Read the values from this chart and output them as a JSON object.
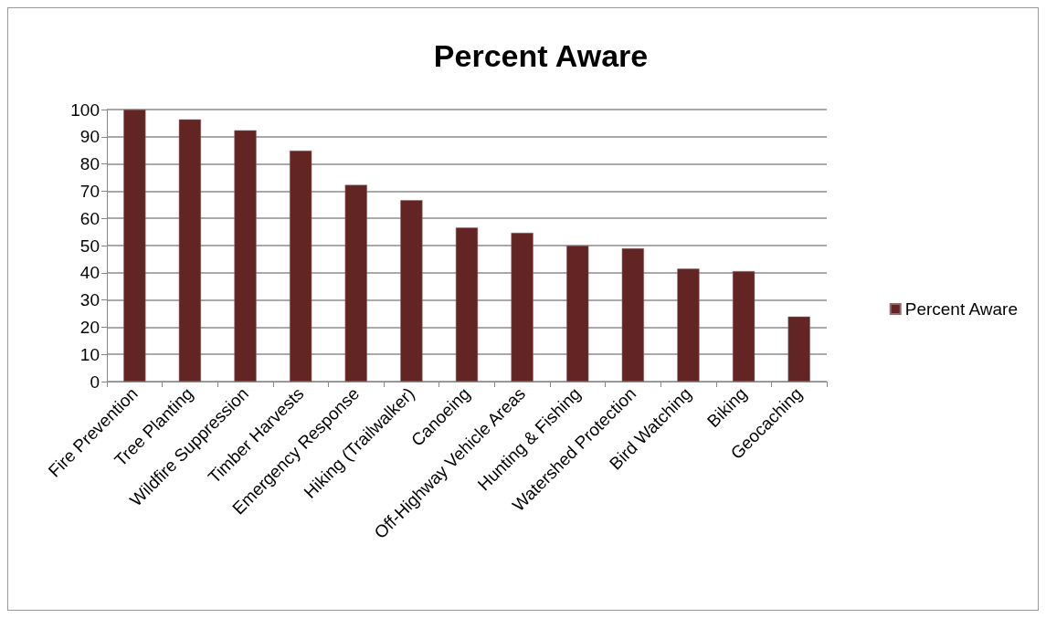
{
  "chart_data": {
    "type": "bar",
    "title": "Percent Aware",
    "categories": [
      "Fire Prevention",
      "Tree Planting",
      "Wildfire Suppression",
      "Timber Harvests",
      "Emergency Response",
      "Hiking (Trailwalker)",
      "Canoeing",
      "Off-Highway Vehicle Areas",
      "Hunting & Fishing",
      "Watershed Protection",
      "Bird Watching",
      "Biking",
      "Geocaching"
    ],
    "series": [
      {
        "name": "Percent Aware",
        "color": "#632523",
        "values": [
          100,
          96.4,
          92.4,
          84.9,
          72.3,
          66.7,
          56.6,
          54.7,
          50,
          49,
          41.5,
          40.6,
          23.9
        ]
      }
    ],
    "ylim": [
      0,
      100
    ],
    "yticks": [
      0,
      10,
      20,
      30,
      40,
      50,
      60,
      70,
      80,
      90,
      100
    ],
    "grid": "y",
    "legend": "right"
  }
}
